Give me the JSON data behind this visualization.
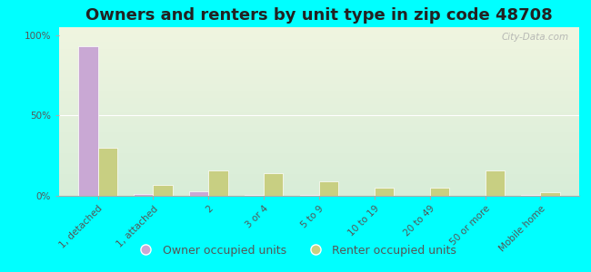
{
  "title": "Owners and renters by unit type in zip code 48708",
  "categories": [
    "1, detached",
    "1, attached",
    "2",
    "3 or 4",
    "5 to 9",
    "10 to 19",
    "20 to 49",
    "50 or more",
    "Mobile home"
  ],
  "owner_values": [
    93,
    1,
    3,
    0.5,
    0.5,
    0,
    0,
    0,
    0.5
  ],
  "renter_values": [
    30,
    7,
    16,
    14,
    9,
    5,
    5,
    16,
    2
  ],
  "owner_color": "#c9a8d4",
  "renter_color": "#c8cf82",
  "background_color": "#00ffff",
  "plot_bg_top": "#f0f5e0",
  "plot_bg_bottom": "#d8edd8",
  "yticks": [
    0,
    50,
    100
  ],
  "ytick_labels": [
    "0%",
    "50%",
    "100%"
  ],
  "ylim": [
    0,
    105
  ],
  "watermark": "City-Data.com",
  "legend_owner": "Owner occupied units",
  "legend_renter": "Renter occupied units",
  "bar_width": 0.35,
  "title_fontsize": 13,
  "tick_fontsize": 7.5,
  "legend_fontsize": 9
}
